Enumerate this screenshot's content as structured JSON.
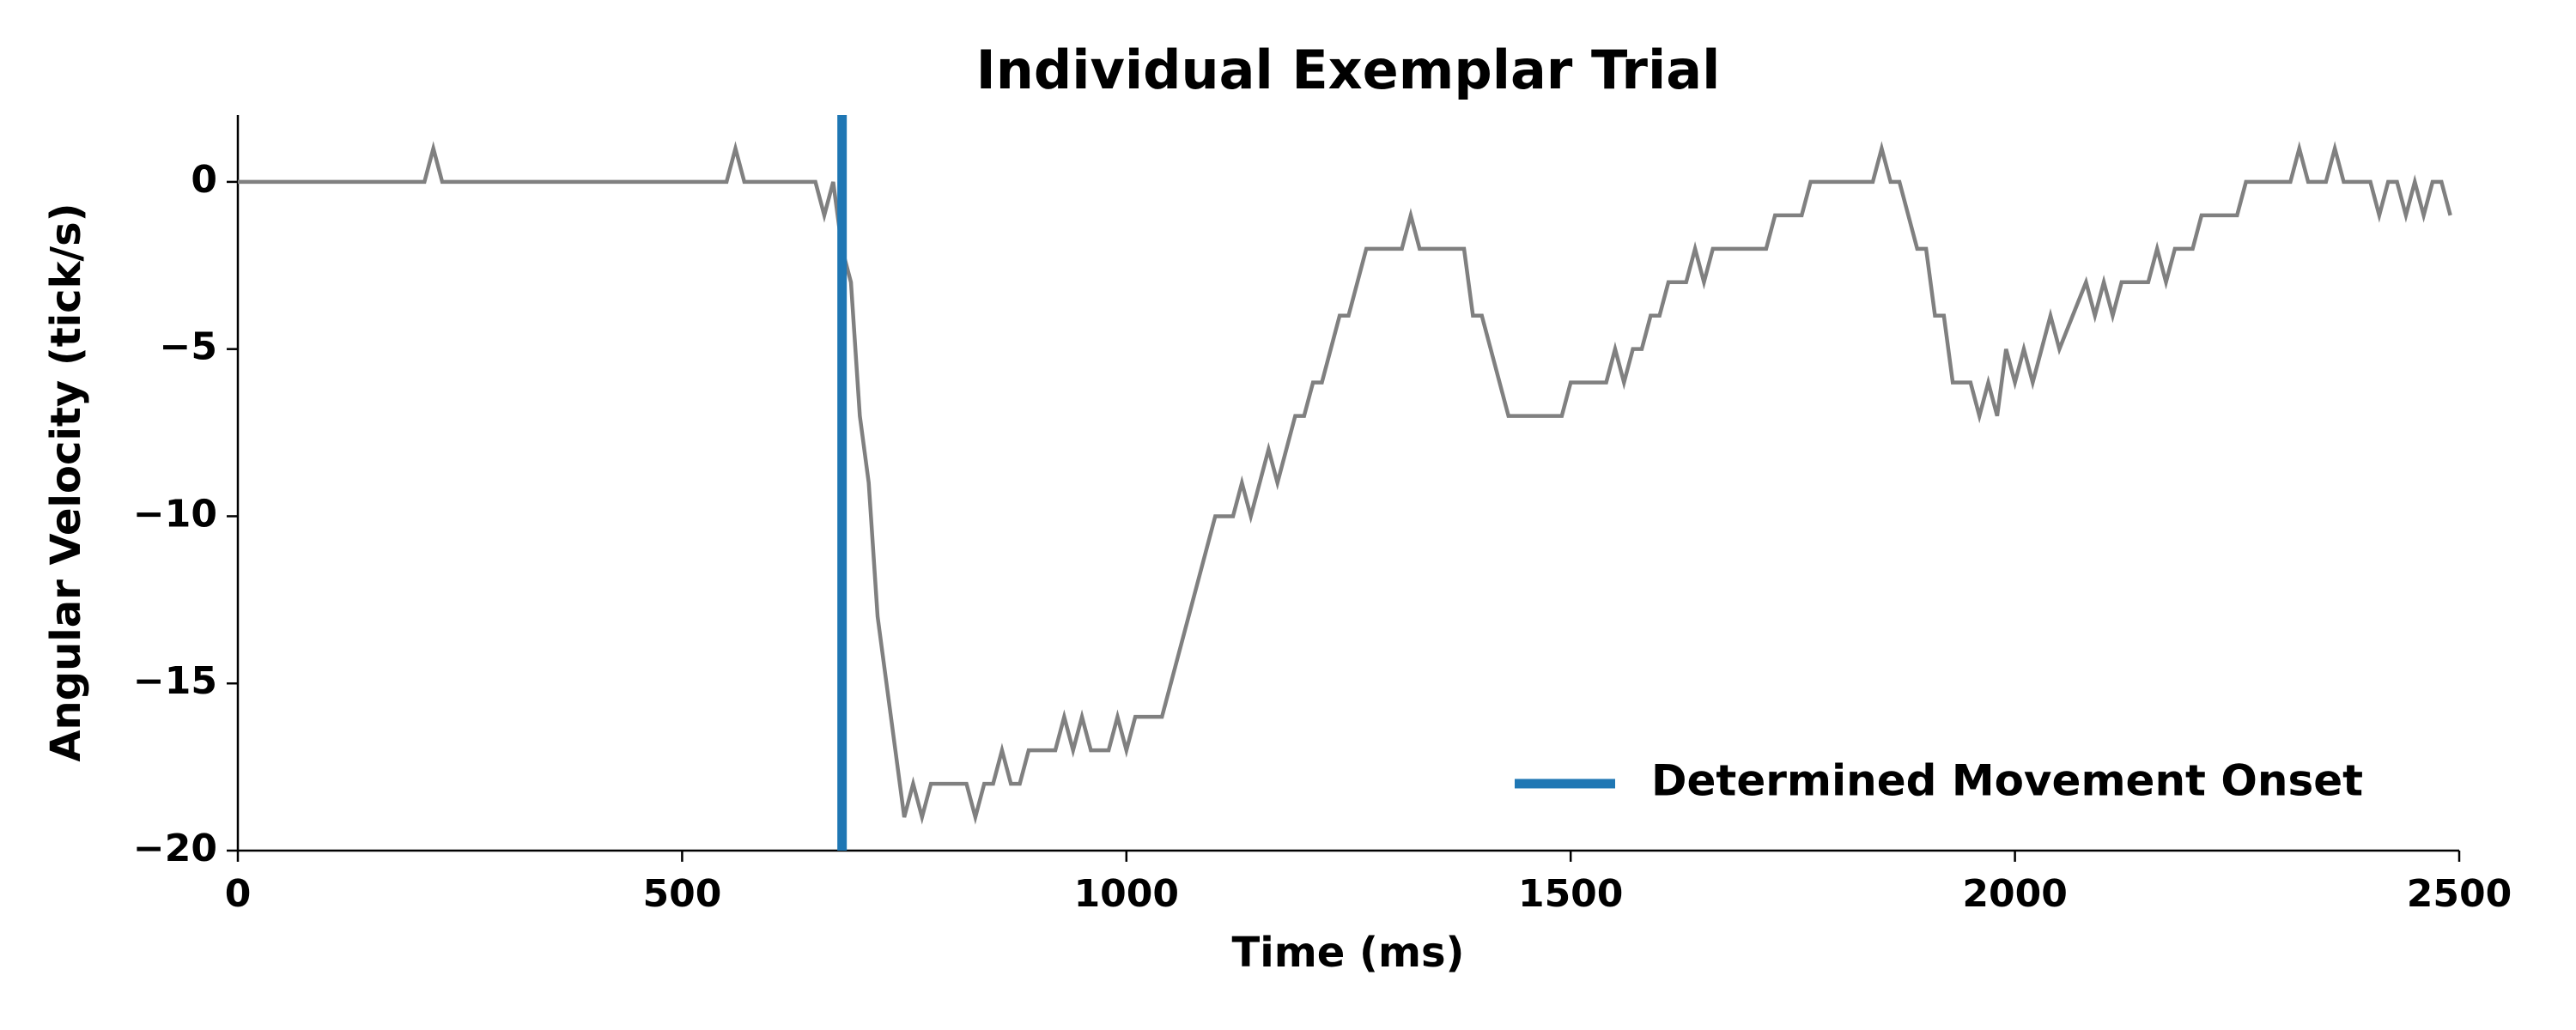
{
  "chart_data": {
    "type": "line",
    "title": "Individual Exemplar Trial",
    "xlabel": "Time (ms)",
    "ylabel": "Angular Velocity (tick/s)",
    "x": [
      0,
      210,
      220,
      230,
      550,
      560,
      570,
      650,
      660,
      670,
      680,
      690,
      700,
      710,
      720,
      740,
      750,
      760,
      770,
      780,
      820,
      830,
      840,
      850,
      860,
      870,
      880,
      890,
      920,
      930,
      940,
      950,
      960,
      980,
      990,
      1000,
      1010,
      1040,
      1100,
      1120,
      1130,
      1140,
      1160,
      1170,
      1190,
      1200,
      1210,
      1220,
      1240,
      1250,
      1270,
      1310,
      1320,
      1330,
      1380,
      1390,
      1400,
      1430,
      1490,
      1500,
      1540,
      1550,
      1560,
      1570,
      1580,
      1590,
      1600,
      1610,
      1630,
      1640,
      1650,
      1660,
      1720,
      1730,
      1760,
      1770,
      1840,
      1850,
      1860,
      1870,
      1890,
      1900,
      1910,
      1920,
      1930,
      1950,
      1960,
      1970,
      1980,
      1990,
      2000,
      2010,
      2020,
      2040,
      2050,
      2080,
      2090,
      2100,
      2110,
      2120,
      2150,
      2160,
      2170,
      2180,
      2200,
      2210,
      2250,
      2260,
      2310,
      2320,
      2330,
      2350,
      2360,
      2370,
      2400,
      2410,
      2420,
      2430,
      2440,
      2450,
      2460,
      2470,
      2480,
      2490
    ],
    "series": [
      {
        "color": "#808080",
        "values": [
          0,
          0,
          1,
          0,
          0,
          1,
          0,
          0,
          -1,
          0,
          -2,
          -3,
          -7,
          -9,
          -13,
          -17,
          -19,
          -18,
          -19,
          -18,
          -18,
          -19,
          -18,
          -18,
          -17,
          -18,
          -18,
          -17,
          -17,
          -16,
          -17,
          -16,
          -17,
          -17,
          -16,
          -17,
          -16,
          -16,
          -10,
          -10,
          -9,
          -10,
          -8,
          -9,
          -7,
          -7,
          -6,
          -6,
          -4,
          -4,
          -2,
          -2,
          -1,
          -2,
          -2,
          -4,
          -4,
          -7,
          -7,
          -6,
          -6,
          -5,
          -6,
          -5,
          -5,
          -4,
          -4,
          -3,
          -3,
          -2,
          -3,
          -2,
          -2,
          -1,
          -1,
          0,
          0,
          1,
          0,
          0,
          -2,
          -2,
          -4,
          -4,
          -6,
          -6,
          -7,
          -6,
          -7,
          -5,
          -6,
          -5,
          -6,
          -4,
          -5,
          -3,
          -4,
          -3,
          -4,
          -3,
          -3,
          -2,
          -3,
          -2,
          -2,
          -1,
          -1,
          0,
          0,
          1,
          0,
          0,
          1,
          0,
          0,
          -1,
          0,
          0,
          -1,
          0,
          -1,
          0,
          0,
          -1
        ]
      }
    ],
    "vline": {
      "x": 680,
      "label": "Determined Movement Onset",
      "color": "#1f77b4"
    },
    "legend": "lower right",
    "xlim": [
      0,
      2500
    ],
    "xticks": [
      0,
      500,
      1000,
      1500,
      2000,
      2500
    ],
    "ylim": [
      -20,
      2
    ],
    "yticks": [
      {
        "value": -20,
        "label": "−20"
      },
      {
        "value": -15,
        "label": "−15"
      },
      {
        "value": -10,
        "label": "−10"
      },
      {
        "value": -5,
        "label": "−5"
      },
      0
    ]
  }
}
